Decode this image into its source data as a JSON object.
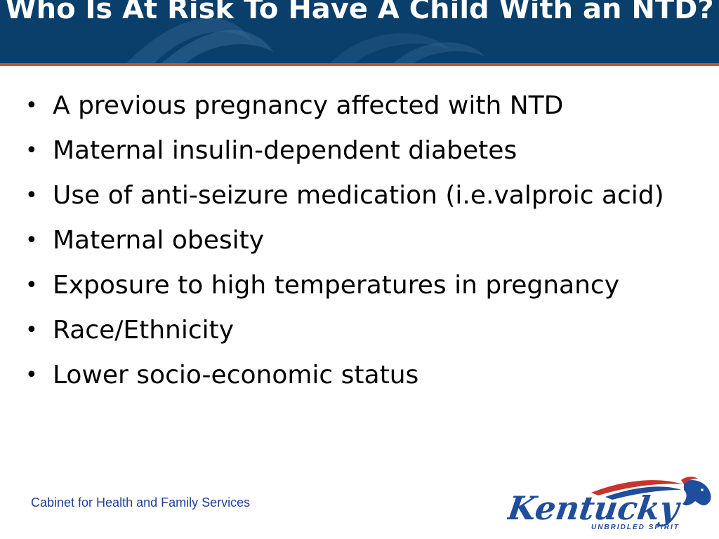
{
  "slide": {
    "title": "Who Is At Risk To Have A Child With an NTD?",
    "bullets": [
      "A previous pregnancy affected with NTD",
      "Maternal insulin-dependent diabetes",
      "Use of anti-seizure medication (i.e.valproic acid)",
      "Maternal obesity",
      "Exposure to high temperatures in pregnancy",
      "Race/Ethnicity",
      "Lower socio-economic status"
    ],
    "bullet_glyph": "•",
    "footer": "Cabinet for Health and Family Services",
    "logo": {
      "name": "Kentucky",
      "tagline": "UNBRIDLED SPIRIT",
      "icon": "horse-head-icon"
    }
  },
  "colors": {
    "header_bg": "#0a3f6b",
    "header_rule": "#c0552a",
    "title_text": "#ffffff",
    "body_text": "#000000",
    "footer_text": "#1f3f9a",
    "logo_blue": "#1f4e9c",
    "logo_red": "#c8352b"
  }
}
